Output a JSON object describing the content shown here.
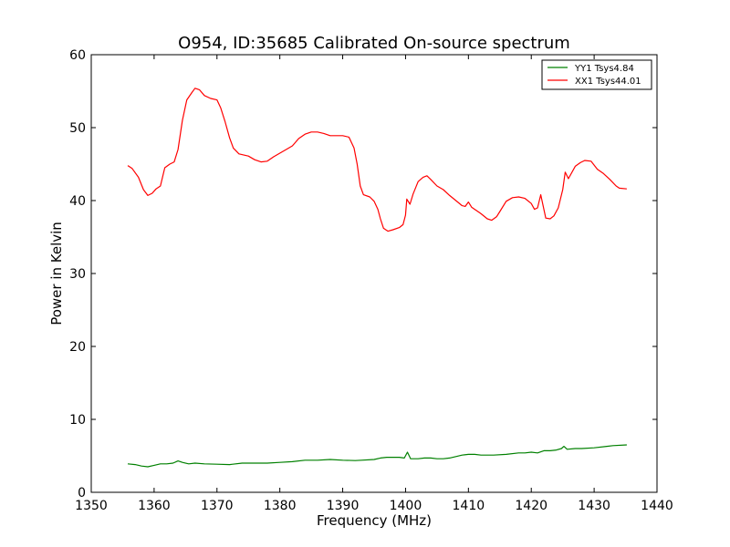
{
  "chart_data": {
    "type": "line",
    "title": "O954, ID:35685 Calibrated On-source spectrum",
    "xlabel": "Frequency (MHz)",
    "ylabel": "Power in Kelvin",
    "xlim": [
      1350,
      1440
    ],
    "ylim": [
      0,
      60
    ],
    "xticks": [
      "1350",
      "1360",
      "1370",
      "1380",
      "1390",
      "1400",
      "1410",
      "1420",
      "1430",
      "1440"
    ],
    "yticks": [
      "0",
      "10",
      "20",
      "30",
      "40",
      "50",
      "60"
    ],
    "grid": false,
    "legend_position": "top-right",
    "series": [
      {
        "name": "YY1 Tsys4.84",
        "color": "#008000",
        "x": [
          1355.8,
          1357,
          1358,
          1359,
          1360,
          1361,
          1362,
          1363,
          1363.8,
          1364.5,
          1365.5,
          1366.5,
          1368,
          1370,
          1372,
          1374,
          1376,
          1378,
          1380,
          1382,
          1384,
          1386,
          1388,
          1390,
          1392,
          1393,
          1395,
          1396,
          1397,
          1398,
          1399,
          1399.8,
          1400.3,
          1400.8,
          1402,
          1403,
          1404,
          1405,
          1406,
          1407,
          1408,
          1409,
          1410,
          1411,
          1412,
          1413,
          1414,
          1416,
          1418,
          1419,
          1420,
          1421,
          1422,
          1423,
          1424,
          1424.8,
          1425.2,
          1425.7,
          1427,
          1428,
          1430,
          1432,
          1433,
          1435.2
        ],
        "y": [
          3.9,
          3.8,
          3.6,
          3.5,
          3.7,
          3.9,
          3.9,
          4.0,
          4.3,
          4.1,
          3.9,
          4.0,
          3.9,
          3.85,
          3.8,
          4.0,
          4.0,
          4.0,
          4.1,
          4.2,
          4.4,
          4.4,
          4.5,
          4.4,
          4.35,
          4.4,
          4.5,
          4.7,
          4.8,
          4.8,
          4.8,
          4.7,
          5.5,
          4.6,
          4.6,
          4.7,
          4.7,
          4.6,
          4.6,
          4.7,
          4.9,
          5.1,
          5.2,
          5.2,
          5.1,
          5.1,
          5.1,
          5.2,
          5.4,
          5.4,
          5.5,
          5.4,
          5.7,
          5.7,
          5.8,
          6.0,
          6.3,
          5.9,
          6.0,
          6.0,
          6.1,
          6.3,
          6.4,
          6.5
        ]
      },
      {
        "name": "XX1 Tsys44.01",
        "color": "#ff0000",
        "x": [
          1355.8,
          1356.5,
          1357.5,
          1358.3,
          1359,
          1359.7,
          1360.3,
          1361,
          1361.7,
          1362.5,
          1363.2,
          1363.8,
          1364.5,
          1365.2,
          1366,
          1366.5,
          1367.2,
          1368,
          1369,
          1370,
          1370.6,
          1371.3,
          1372,
          1372.6,
          1373.5,
          1375,
          1376,
          1377,
          1378,
          1379,
          1380,
          1381,
          1382,
          1382.5,
          1383,
          1384,
          1385,
          1386,
          1387,
          1388,
          1389,
          1390,
          1391,
          1391.8,
          1392.3,
          1392.8,
          1393.3,
          1394.3,
          1395,
          1395.6,
          1396,
          1396.5,
          1397.2,
          1398,
          1399,
          1399.6,
          1400,
          1400.2,
          1400.7,
          1401.2,
          1402,
          1402.8,
          1403.4,
          1404,
          1405,
          1406,
          1407,
          1408,
          1409,
          1409.5,
          1410,
          1410.5,
          1411,
          1411.5,
          1412,
          1413,
          1413.7,
          1414.5,
          1415,
          1416,
          1417,
          1418,
          1419,
          1420,
          1420.5,
          1421,
          1421.5,
          1422.3,
          1423,
          1423.6,
          1424.3,
          1425,
          1425.4,
          1425.9,
          1427,
          1427.8,
          1428.5,
          1429.5,
          1430.5,
          1431.5,
          1432.5,
          1433.5,
          1434,
          1435.2
        ],
        "y": [
          44.8,
          44.4,
          43.2,
          41.5,
          40.7,
          41.0,
          41.6,
          42.0,
          44.5,
          45.0,
          45.3,
          47.0,
          51.0,
          53.8,
          54.8,
          55.4,
          55.2,
          54.4,
          54.0,
          53.8,
          52.7,
          50.8,
          48.6,
          47.2,
          46.4,
          46.1,
          45.6,
          45.3,
          45.4,
          46.0,
          46.5,
          47.0,
          47.5,
          48.0,
          48.5,
          49.1,
          49.4,
          49.4,
          49.2,
          48.9,
          48.9,
          48.9,
          48.7,
          47.2,
          45.0,
          42.0,
          40.8,
          40.5,
          39.9,
          38.8,
          37.5,
          36.2,
          35.8,
          36.0,
          36.3,
          36.7,
          38.0,
          40.2,
          39.5,
          40.9,
          42.6,
          43.2,
          43.4,
          42.9,
          42.0,
          41.5,
          40.7,
          40.0,
          39.3,
          39.2,
          39.8,
          39.1,
          38.8,
          38.5,
          38.2,
          37.5,
          37.3,
          37.8,
          38.5,
          39.9,
          40.4,
          40.5,
          40.3,
          39.6,
          38.8,
          39.0,
          40.8,
          37.6,
          37.5,
          37.9,
          39.0,
          41.5,
          43.9,
          43.0,
          44.7,
          45.2,
          45.5,
          45.4,
          44.3,
          43.7,
          42.9,
          42.0,
          41.7,
          41.6
        ]
      }
    ]
  }
}
